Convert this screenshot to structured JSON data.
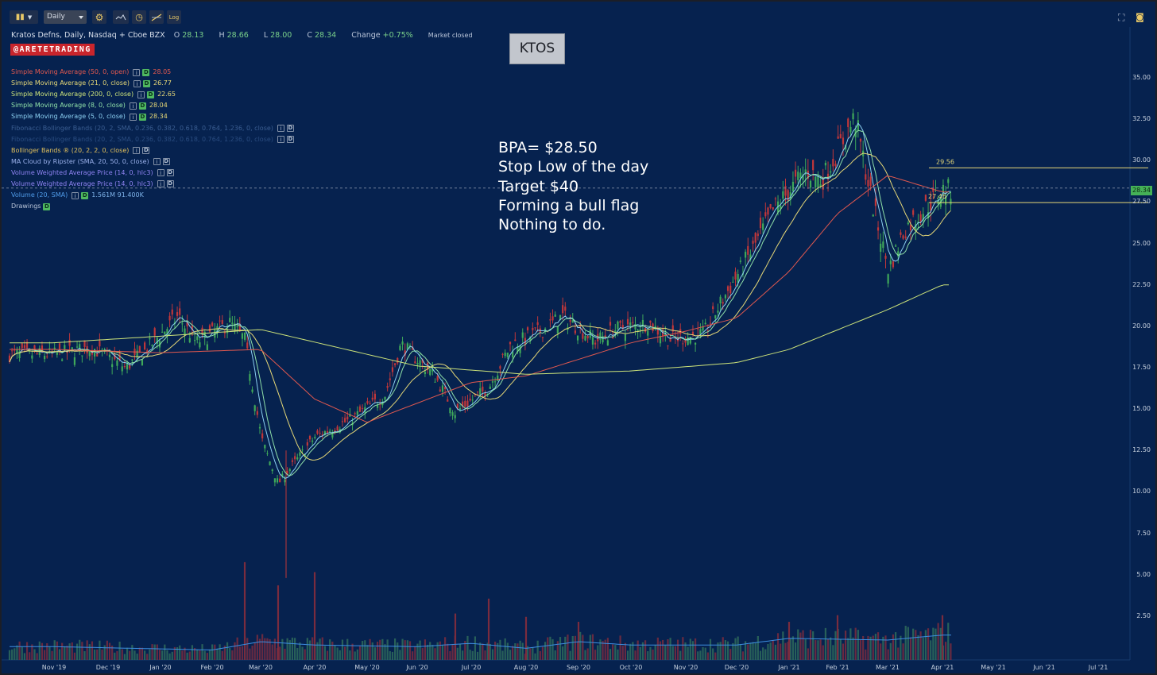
{
  "toolbar": {
    "candles_icon": "candles-icon",
    "interval": "Daily",
    "settings_icon": "gear-icon",
    "compare_icon": "compare-icon",
    "clock_icon": "clock-icon",
    "log_label": "Log",
    "fullscreen_icon": "fullscreen-icon",
    "camera_icon": "camera-icon"
  },
  "info": {
    "title": "Kratos Defns, Daily, Nasdaq + Cboe BZX",
    "o_label": "O",
    "o": "28.13",
    "h_label": "H",
    "h": "28.66",
    "l_label": "L",
    "l": "28.00",
    "c_label": "C",
    "c": "28.34",
    "change_label": "Change",
    "change": "+0.75%",
    "status": "Market closed"
  },
  "brand": "@ARETETRADING",
  "ticker": "KTOS",
  "indicators": [
    {
      "label": "Simple Moving Average (50, 0, open)",
      "value": "28.05",
      "color": "#e0584f",
      "d": true
    },
    {
      "label": "Simple Moving Average (21, 0, close)",
      "value": "26.77",
      "color": "#e6d877",
      "d": true
    },
    {
      "label": "Simple Moving Average (200, 0, close)",
      "value": "22.65",
      "color": "#cde47a",
      "d": true
    },
    {
      "label": "Simple Moving Average (8, 0, close)",
      "value": "28.04",
      "color": "#8fe0a8",
      "d": true
    },
    {
      "label": "Simple Moving Average (5, 0, close)",
      "value": "28.34",
      "color": "#8cd0f2",
      "d": true
    },
    {
      "label": "Fibonacci Bollinger Bands (20, 2, SMA, 0.236, 0.382, 0.618, 0.764, 1.236, 0, close)",
      "value": "",
      "color": "#3b5e92",
      "d": false
    },
    {
      "label": "Fibonacci Bollinger Bands (20, 2, SMA, 0.236, 0.382, 0.618, 0.764, 1.236, 0, close)",
      "value": "",
      "color": "#2a4c80",
      "d": false
    },
    {
      "label": "Bollinger Bands ® (20, 2, 2, 0, close)",
      "value": "",
      "color": "#e2c05c",
      "d": false
    },
    {
      "label": "MA Cloud by Ripster (SMA, 20, 50, 0, close)",
      "value": "",
      "color": "#9ab0ea",
      "d": false
    },
    {
      "label": "Volume Weighted Average Price (14, 0, hlc3)",
      "value": "",
      "color": "#8f83f2",
      "d": false
    },
    {
      "label": "Volume Weighted Average Price (14, 0, hlc3)",
      "value": "",
      "color": "#8f83f2",
      "d": false
    },
    {
      "label": "Volume (20, SMA)",
      "value": "1.561M 91.400K",
      "color": "#4f9be8",
      "d": true
    },
    {
      "label": "Drawings",
      "value": "",
      "color": "#b9c5d9",
      "d": true
    }
  ],
  "legend_d": "D",
  "legend_i": "i",
  "annotation": [
    "BPA= $28.50",
    "Stop Low of the day",
    "Target $40",
    "Forming a bull flag",
    "Nothing to do."
  ],
  "levels": {
    "upper": "29.56",
    "lower": "27.46"
  },
  "last_price": "28.34",
  "chart_data": {
    "type": "candlestick",
    "y_ticks": [
      "35.00",
      "32.50",
      "30.00",
      "27.50",
      "25.00",
      "22.50",
      "20.00",
      "17.50",
      "15.00",
      "12.50",
      "10.00",
      "7.50",
      "5.00",
      "2.50"
    ],
    "x_ticks": [
      "Nov '19",
      "Dec '19",
      "Jan '20",
      "Feb '20",
      "Mar '20",
      "Apr '20",
      "May '20",
      "Jun '20",
      "Jul '20",
      "Aug '20",
      "Sep '20",
      "Oct '20",
      "Nov '20",
      "Dec '20",
      "Jan '21",
      "Feb '21",
      "Mar '21",
      "Apr '21",
      "May '21",
      "Jun '21",
      "Jul '21"
    ],
    "ylim": [
      0,
      36.6
    ],
    "anchors": [
      [
        "Nov '19",
        18.3
      ],
      [
        "Dec '19",
        18.7
      ],
      [
        "Dec '19",
        17.5
      ],
      [
        "Jan '20",
        18.5
      ],
      [
        "Jan '20",
        20.6
      ],
      [
        "Feb '20",
        19.0
      ],
      [
        "Feb '20",
        20.2
      ],
      [
        "Mar '20",
        19.2
      ],
      [
        "Mar '20",
        13.2
      ],
      [
        "Mar '20",
        10.5
      ],
      [
        "Apr '20",
        13.3
      ],
      [
        "May '20",
        14.4
      ],
      [
        "May '20",
        15.8
      ],
      [
        "Jun '20",
        18.9
      ],
      [
        "Jun '20",
        17.0
      ],
      [
        "Jul '20",
        14.8
      ],
      [
        "Jul '20",
        16.3
      ],
      [
        "Aug '20",
        18.8
      ],
      [
        "Aug '20",
        19.8
      ],
      [
        "Sep '20",
        20.6
      ],
      [
        "Sep '20",
        19.1
      ],
      [
        "Oct '20",
        19.8
      ],
      [
        "Oct '20",
        20.2
      ],
      [
        "Nov '20",
        19.2
      ],
      [
        "Nov '20",
        19.5
      ],
      [
        "Dec '20",
        21.4
      ],
      [
        "Dec '20",
        24.8
      ],
      [
        "Jan '21",
        27.0
      ],
      [
        "Jan '21",
        29.4
      ],
      [
        "Feb '21",
        28.8
      ],
      [
        "Feb '21",
        32.6
      ],
      [
        "Mar '21",
        27.6
      ],
      [
        "Mar '21",
        23.4
      ],
      [
        "Mar '21",
        25.9
      ],
      [
        "Apr '21",
        28.2
      ]
    ],
    "sma200": [
      [
        "Nov '19",
        19.0
      ],
      [
        "Jan '20",
        19.4
      ],
      [
        "Mar '20",
        19.8
      ],
      [
        "Jun '20",
        17.6
      ],
      [
        "Aug '20",
        17.1
      ],
      [
        "Oct '20",
        17.3
      ],
      [
        "Dec '20",
        17.8
      ],
      [
        "Jan '21",
        18.6
      ],
      [
        "Mar '21",
        21.0
      ],
      [
        "Apr '21",
        22.5
      ]
    ],
    "sma50": [
      [
        "Nov '19",
        18.6
      ],
      [
        "Jan '20",
        18.4
      ],
      [
        "Mar '20",
        18.6
      ],
      [
        "Apr '20",
        15.6
      ],
      [
        "May '20",
        14.2
      ],
      [
        "Jul '20",
        16.6
      ],
      [
        "Aug '20",
        17.0
      ],
      [
        "Oct '20",
        19.0
      ],
      [
        "Nov '20",
        19.7
      ],
      [
        "Dec '20",
        20.5
      ],
      [
        "Jan '21",
        23.3
      ],
      [
        "Feb '21",
        26.8
      ],
      [
        "Mar '21",
        29.1
      ],
      [
        "Apr '21",
        28.1
      ]
    ],
    "volume_sma": [
      [
        "Nov '19",
        0.8
      ],
      [
        "Feb '20",
        0.6
      ],
      [
        "Mar '20",
        1.1
      ],
      [
        "Apr '20",
        0.9
      ],
      [
        "Jun '20",
        0.8
      ],
      [
        "Jul '20",
        1.0
      ],
      [
        "Aug '20",
        0.7
      ],
      [
        "Sep '20",
        1.1
      ],
      [
        "Oct '20",
        0.9
      ],
      [
        "Dec '20",
        0.9
      ],
      [
        "Jan '21",
        1.3
      ],
      [
        "Mar '21",
        1.2
      ],
      [
        "Apr '21",
        1.5
      ]
    ],
    "volume_spikes": [
      [
        "Mar '20",
        5.9
      ],
      [
        "Mar '20",
        4.5
      ],
      [
        "Apr '20",
        5.3
      ],
      [
        "Jul '20",
        2.8
      ],
      [
        "Jul '20",
        3.7
      ],
      [
        "Aug '20",
        2.6
      ],
      [
        "Sep '20",
        2.3
      ],
      [
        "Jan '21",
        2.3
      ],
      [
        "Feb '21",
        2.7
      ],
      [
        "Apr '21",
        2.7
      ]
    ]
  }
}
